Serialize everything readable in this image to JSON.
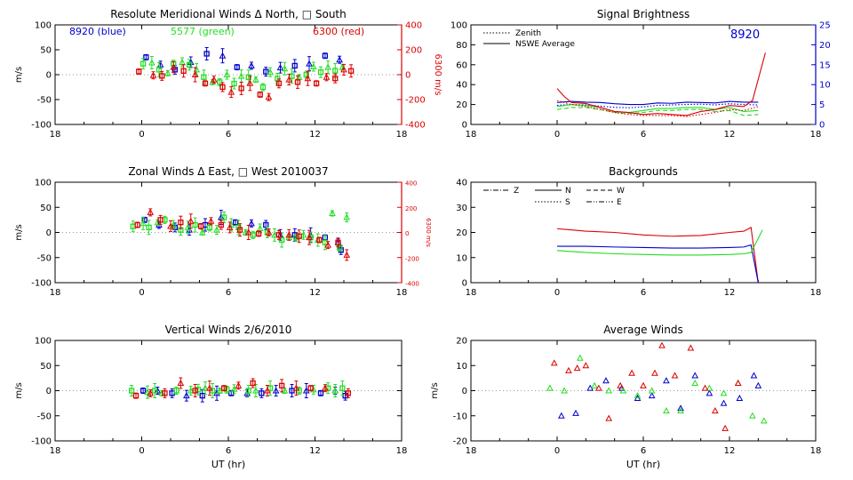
{
  "colors": {
    "blue": "#0000cc",
    "green": "#22dd22",
    "red": "#dd0000",
    "axis": "#000000"
  },
  "x_ticks": [
    "18",
    "0",
    "6",
    "12",
    "18"
  ],
  "chart_data": [
    {
      "id": "meridional",
      "type": "scatter",
      "title": "Resolute Meridional Winds Δ North, □ South",
      "ylabel": "m/s",
      "y2label": "6300 m/s",
      "xlabel": "",
      "xlim": [
        -6,
        18
      ],
      "ylim": [
        -100,
        100
      ],
      "y2lim": [
        -400,
        400
      ],
      "yticks": [
        "100",
        "50",
        "0",
        "-50",
        "-100"
      ],
      "y2ticks": [
        "400",
        "200",
        "0",
        "-200",
        "-400"
      ],
      "legend": [
        "8920 (blue)",
        "5577 (green)",
        "6300 (red)"
      ],
      "series": [
        {
          "name": "8920 (blue)",
          "color": "blue",
          "x": [
            0.3,
            1.3,
            2.3,
            3.4,
            4.5,
            5.6,
            6.6,
            7.6,
            8.6,
            9.6,
            10.6,
            11.6,
            12.7,
            13.7
          ],
          "y": [
            35,
            20,
            10,
            25,
            42,
            38,
            15,
            18,
            6,
            14,
            18,
            22,
            38,
            30
          ]
        },
        {
          "name": "5577 (green)",
          "color": "green",
          "x": [
            0.1,
            0.7,
            1.2,
            1.8,
            2.2,
            2.8,
            3.3,
            3.8,
            4.3,
            4.9,
            5.4,
            5.9,
            6.4,
            6.9,
            7.4,
            7.9,
            8.4,
            8.9,
            9.4,
            9.9,
            10.4,
            10.9,
            11.4,
            11.9,
            12.4,
            12.9,
            13.4,
            13.9
          ],
          "y": [
            22,
            24,
            10,
            3,
            22,
            25,
            20,
            10,
            -5,
            -15,
            -15,
            0,
            -18,
            -3,
            -5,
            -10,
            -25,
            5,
            -8,
            12,
            -3,
            -5,
            0,
            16,
            5,
            15,
            8,
            15
          ],
          "markers": "square"
        },
        {
          "name": "6300 (red)",
          "color": "red",
          "x": [
            -0.2,
            0.8,
            1.4,
            2.2,
            2.9,
            3.7,
            4.4,
            5.0,
            5.6,
            6.2,
            6.9,
            7.5,
            8.2,
            8.8,
            9.5,
            10.2,
            10.8,
            11.5,
            12.1,
            12.8,
            13.4,
            14.0,
            14.5
          ],
          "y": [
            25,
            -5,
            -10,
            60,
            30,
            0,
            -70,
            -40,
            -100,
            -140,
            -110,
            -70,
            -160,
            -180,
            -70,
            -40,
            -60,
            -30,
            -70,
            -20,
            -30,
            40,
            30
          ]
        }
      ]
    },
    {
      "id": "signal",
      "type": "line",
      "title": "Signal Brightness",
      "ylabel": "",
      "y2label": "",
      "xlabel": "",
      "xlim": [
        -6,
        18
      ],
      "ylim": [
        0,
        100
      ],
      "y2lim": [
        0,
        25
      ],
      "yticks": [
        "100",
        "80",
        "60",
        "40",
        "20",
        "0"
      ],
      "y2ticks": [
        "25",
        "20",
        "15",
        "10",
        "5",
        "0"
      ],
      "annotation": "8920",
      "legend": [
        "Zenith",
        "NSWE Average"
      ],
      "series": [
        {
          "name": "NSWE Average",
          "color": "blue",
          "x": [
            0,
            1,
            2,
            3,
            4,
            5,
            6,
            7,
            8,
            9,
            10,
            11,
            12,
            13,
            14
          ],
          "y": [
            5.5,
            5.8,
            5.6,
            5.5,
            5.2,
            5,
            5,
            5.4,
            5.3,
            5.6,
            5.5,
            5.4,
            5.8,
            5.6,
            5.6
          ]
        },
        {
          "name": "Zenith",
          "color": "blue",
          "dash": "dot",
          "x": [
            0,
            1,
            2,
            3,
            4,
            5,
            6,
            7,
            8,
            9,
            10,
            11,
            12,
            13,
            14
          ],
          "y": [
            4.8,
            5,
            4.9,
            4.6,
            4.3,
            4.2,
            4.4,
            4.8,
            4.9,
            5,
            5.1,
            4.9,
            5.2,
            5,
            4.9
          ]
        },
        {
          "name": "NSWE Average",
          "color": "green",
          "x": [
            0,
            1,
            2,
            3,
            4,
            5,
            6,
            7,
            8,
            9,
            10,
            11,
            12,
            13,
            14
          ],
          "y": [
            18,
            20,
            19,
            17,
            13,
            12,
            14,
            16,
            16,
            17,
            17,
            15,
            17,
            13,
            14
          ]
        },
        {
          "name": "Zenith",
          "color": "green",
          "dash": "dash",
          "x": [
            0,
            1,
            2,
            3,
            4,
            5,
            6,
            7,
            8,
            9,
            10,
            11,
            12,
            13,
            14
          ],
          "y": [
            15,
            17,
            17,
            15,
            12,
            11,
            12,
            14,
            14,
            15,
            15,
            13,
            14,
            9,
            10
          ]
        },
        {
          "name": "NSWE Average",
          "color": "red",
          "x": [
            0,
            0.5,
            1,
            2,
            3,
            4,
            5,
            6,
            7,
            8,
            9,
            10,
            11,
            12,
            13,
            13.6,
            14.5
          ],
          "y": [
            36,
            28,
            22,
            21,
            17,
            13,
            12,
            10,
            11,
            10,
            9,
            13,
            15,
            19,
            18,
            24,
            72
          ]
        },
        {
          "name": "Zenith",
          "color": "red",
          "dash": "dot",
          "x": [
            0,
            1,
            2,
            3,
            4,
            5,
            6,
            7,
            8,
            9,
            10,
            11,
            12,
            13,
            14
          ],
          "y": [
            24,
            20,
            18,
            15,
            12,
            10,
            9,
            9,
            9,
            8,
            10,
            12,
            15,
            14,
            18
          ]
        }
      ]
    },
    {
      "id": "zonal",
      "type": "scatter",
      "title": "Zonal Winds Δ East, □ West 2010037",
      "ylabel": "m/s",
      "y2label": "6300 m/s",
      "xlabel": "",
      "xlim": [
        -6,
        18
      ],
      "ylim": [
        -100,
        100
      ],
      "y2lim": [
        -400,
        400
      ],
      "yticks": [
        "100",
        "50",
        "0",
        "-50",
        "-100"
      ],
      "y2ticks": [
        "400",
        "200",
        "0",
        "-200",
        "-400"
      ],
      "series": [
        {
          "name": "8920",
          "color": "blue",
          "x": [
            0.2,
            1.2,
            2.3,
            3.3,
            4.4,
            5.5,
            6.5,
            7.6,
            8.6,
            9.6,
            10.6,
            11.7,
            12.7,
            13.6,
            13.8
          ],
          "y": [
            25,
            15,
            10,
            5,
            15,
            30,
            20,
            18,
            15,
            -5,
            -5,
            -5,
            -10,
            -20,
            -35
          ]
        },
        {
          "name": "5577",
          "color": "green",
          "x": [
            -0.6,
            0.1,
            0.5,
            1.1,
            1.6,
            2.2,
            2.7,
            3.2,
            3.7,
            4.2,
            4.7,
            5.2,
            5.7,
            6.2,
            6.7,
            7.2,
            7.7,
            8.2,
            8.7,
            9.2,
            9.7,
            10.2,
            10.7,
            11.2,
            11.7,
            12.2,
            12.7,
            13.2,
            13.7,
            14.2
          ],
          "y": [
            12,
            18,
            10,
            20,
            25,
            15,
            5,
            10,
            15,
            0,
            10,
            5,
            30,
            15,
            10,
            0,
            -5,
            8,
            0,
            -5,
            -15,
            -10,
            -10,
            -5,
            -10,
            -15,
            -20,
            38,
            -30,
            30
          ]
        },
        {
          "name": "6300",
          "color": "red",
          "x": [
            -0.3,
            0.6,
            1.3,
            2.0,
            2.7,
            3.4,
            4.1,
            4.8,
            5.5,
            6.1,
            6.8,
            7.4,
            8.1,
            8.8,
            9.5,
            10.2,
            10.9,
            11.6,
            12.3,
            12.9,
            13.6,
            14.2
          ],
          "y": [
            60,
            160,
            100,
            50,
            80,
            90,
            50,
            90,
            60,
            40,
            20,
            0,
            -10,
            0,
            -20,
            -20,
            -30,
            -40,
            -60,
            -100,
            -80,
            -180
          ]
        }
      ]
    },
    {
      "id": "backgrounds",
      "type": "line",
      "title": "Backgrounds",
      "ylabel": "",
      "xlabel": "",
      "xlim": [
        -6,
        18
      ],
      "ylim": [
        0,
        40
      ],
      "yticks": [
        "40",
        "30",
        "20",
        "10",
        "0"
      ],
      "legend": [
        "Z",
        "N",
        "W",
        "S",
        "E"
      ],
      "series": [
        {
          "name": "red",
          "color": "red",
          "x": [
            0,
            2,
            4,
            6,
            8,
            10,
            12,
            13,
            13.5,
            14
          ],
          "y": [
            21.5,
            20.5,
            20,
            19,
            18.5,
            18.8,
            20,
            20.5,
            22,
            0
          ]
        },
        {
          "name": "blue",
          "color": "blue",
          "x": [
            0,
            2,
            4,
            6,
            8,
            10,
            12,
            13,
            13.5,
            14
          ],
          "y": [
            14.5,
            14.5,
            14.2,
            14,
            13.8,
            13.8,
            14,
            14.2,
            15,
            0
          ]
        },
        {
          "name": "green",
          "color": "green",
          "x": [
            0,
            2,
            4,
            6,
            8,
            10,
            12,
            13,
            13.5,
            14.3
          ],
          "y": [
            12.8,
            12,
            11.5,
            11.2,
            11,
            11,
            11.2,
            11.5,
            12,
            21
          ]
        }
      ]
    },
    {
      "id": "vertical",
      "type": "scatter",
      "title": "Vertical Winds 2/6/2010",
      "ylabel": "m/s",
      "xlabel": "UT (hr)",
      "xlim": [
        -6,
        18
      ],
      "ylim": [
        -100,
        100
      ],
      "yticks": [
        "100",
        "50",
        "0",
        "-50",
        "-100"
      ],
      "series": [
        {
          "name": "8920",
          "color": "blue",
          "x": [
            0.1,
            1.1,
            2.1,
            3.1,
            4.2,
            5.2,
            6.2,
            7.3,
            8.3,
            9.3,
            10.4,
            11.4,
            12.4,
            13.4,
            14.1
          ],
          "y": [
            0,
            0,
            -5,
            -10,
            -10,
            -5,
            -5,
            -5,
            -5,
            0,
            0,
            0,
            -5,
            0,
            -10
          ]
        },
        {
          "name": "5577",
          "color": "green",
          "x": [
            -0.7,
            0.4,
            0.9,
            1.4,
            2.4,
            3.4,
            3.9,
            4.4,
            4.9,
            5.4,
            5.9,
            6.4,
            7.4,
            7.9,
            8.9,
            9.9,
            10.9,
            11.9,
            12.9,
            13.4,
            13.9
          ],
          "y": [
            0,
            -3,
            0,
            -5,
            0,
            0,
            2,
            5,
            0,
            0,
            2,
            3,
            0,
            0,
            5,
            0,
            0,
            2,
            5,
            0,
            5
          ]
        },
        {
          "name": "6300",
          "color": "red",
          "x": [
            -0.4,
            0.6,
            1.6,
            2.7,
            3.7,
            4.7,
            5.7,
            6.7,
            7.7,
            8.7,
            9.7,
            10.7,
            11.7,
            12.7,
            14.3
          ],
          "y": [
            -10,
            -5,
            -5,
            15,
            0,
            5,
            5,
            10,
            15,
            0,
            10,
            5,
            5,
            5,
            -5
          ]
        }
      ]
    },
    {
      "id": "average",
      "type": "scatter",
      "title": "Average Winds",
      "ylabel": "m/s",
      "xlabel": "UT (hr)",
      "xlim": [
        -6,
        18
      ],
      "ylim": [
        -20,
        20
      ],
      "yticks": [
        "20",
        "10",
        "0",
        "-10",
        "-20"
      ],
      "series": [
        {
          "name": "blue",
          "color": "blue",
          "x": [
            0.3,
            1.3,
            2.3,
            3.4,
            4.5,
            5.6,
            6.6,
            7.6,
            8.6,
            9.6,
            10.6,
            11.6,
            12.7,
            13.7,
            14.0
          ],
          "y": [
            -10,
            -9,
            1,
            4,
            1,
            -3,
            -2,
            4,
            -7,
            6,
            -1,
            -5,
            -3,
            6,
            2
          ]
        },
        {
          "name": "green",
          "color": "green",
          "x": [
            -0.5,
            0.5,
            1.6,
            2.6,
            3.6,
            4.6,
            5.6,
            6.6,
            7.6,
            8.6,
            9.6,
            10.6,
            11.6,
            12.6,
            13.6,
            14.4
          ],
          "y": [
            1,
            0,
            13,
            2,
            0,
            0,
            -2,
            0,
            -8,
            -8,
            3,
            1,
            -1,
            3,
            -10,
            -12
          ]
        },
        {
          "name": "red",
          "color": "red",
          "x": [
            -0.2,
            0.8,
            1.4,
            2.0,
            2.9,
            3.6,
            4.4,
            5.2,
            6.0,
            6.8,
            7.3,
            8.2,
            9.3,
            10.3,
            11.0,
            11.7,
            12.6
          ],
          "y": [
            11,
            8,
            9,
            10,
            1,
            -11,
            2,
            7,
            2,
            7,
            18,
            6,
            17,
            1,
            -8,
            -15,
            3
          ]
        }
      ]
    }
  ]
}
